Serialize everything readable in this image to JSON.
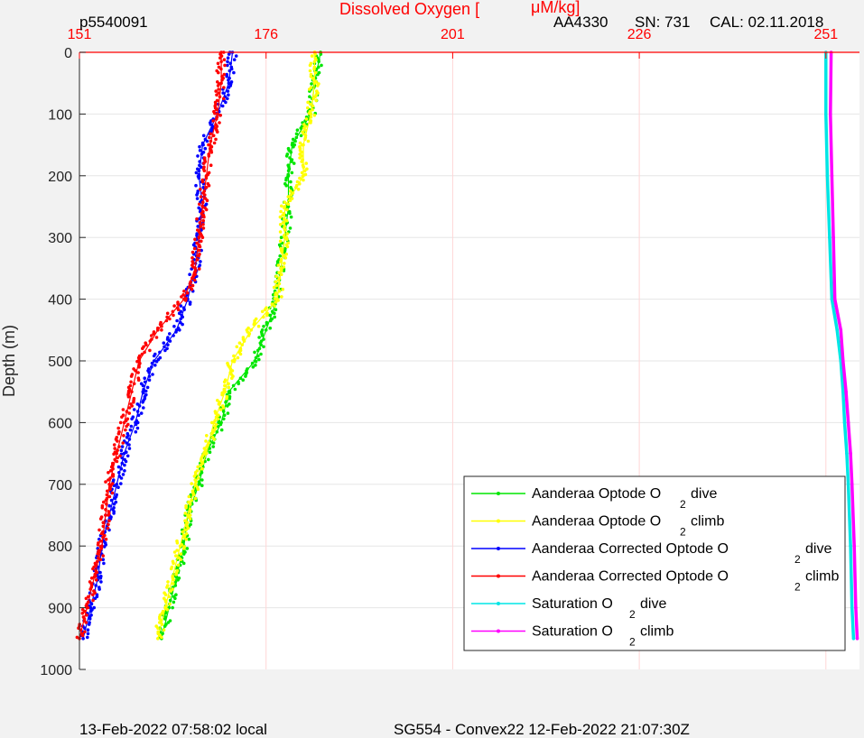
{
  "header": {
    "left_id": "p5540091",
    "sensor": "AA4330",
    "serial": "SN: 731",
    "calibration": "CAL: 02.11.2018"
  },
  "footer": {
    "local_time": "13-Feb-2022 07:58:02 local",
    "mission": "SG554 - Convex22 12-Feb-2022 21:07:30Z"
  },
  "colors": {
    "axis_red": "#ff0000",
    "green": "#00e600",
    "yellow": "#ffff00",
    "blue": "#0000ff",
    "red": "#ff0000",
    "cyan": "#00e5e5",
    "magenta": "#ff00ff"
  },
  "chart_data": {
    "type": "scatter",
    "title": "",
    "xlabel": "Dissolved Oxygen [",
    "xlabel_unit": "μM/kg]",
    "ylabel": "Depth (m)",
    "xlim": [
      151,
      255.5
    ],
    "ylim": [
      0,
      1000
    ],
    "y_reversed": true,
    "x_axis_position": "top",
    "x_ticks": [
      151,
      176,
      201,
      226,
      251
    ],
    "x_tick_labels": [
      "151",
      "176",
      "201",
      "226",
      "251"
    ],
    "y_ticks": [
      0,
      100,
      200,
      300,
      400,
      500,
      600,
      700,
      800,
      900,
      1000
    ],
    "y_tick_labels": [
      "0",
      "100",
      "200",
      "300",
      "400",
      "500",
      "600",
      "700",
      "800",
      "900",
      "1000"
    ],
    "grid": true,
    "legend_position": "bottom-right",
    "series": [
      {
        "name": "Aanderaa Optode O",
        "subscript": "2",
        "suffix": "dive",
        "color": "#00e600",
        "points": [
          [
            183.3,
            0
          ],
          [
            182.5,
            50
          ],
          [
            182,
            100
          ],
          [
            179.5,
            150
          ],
          [
            179,
            200
          ],
          [
            179,
            250
          ],
          [
            178.5,
            300
          ],
          [
            178,
            350
          ],
          [
            177.5,
            400
          ],
          [
            176,
            450
          ],
          [
            174.5,
            500
          ],
          [
            171,
            550
          ],
          [
            170,
            600
          ],
          [
            168,
            650
          ],
          [
            167,
            700
          ],
          [
            165.5,
            750
          ],
          [
            165,
            800
          ],
          [
            164,
            850
          ],
          [
            163,
            900
          ],
          [
            162,
            950
          ]
        ]
      },
      {
        "name": "Aanderaa Optode O",
        "subscript": "2",
        "suffix": "climb",
        "color": "#ffff00",
        "points": [
          [
            182.5,
            0
          ],
          [
            182.5,
            50
          ],
          [
            182,
            100
          ],
          [
            181,
            150
          ],
          [
            181,
            200
          ],
          [
            178.5,
            250
          ],
          [
            178.5,
            300
          ],
          [
            178,
            350
          ],
          [
            177.5,
            400
          ],
          [
            174,
            450
          ],
          [
            171.5,
            500
          ],
          [
            170.5,
            550
          ],
          [
            169,
            600
          ],
          [
            168,
            650
          ],
          [
            166.5,
            700
          ],
          [
            165.5,
            750
          ],
          [
            164.5,
            800
          ],
          [
            163.5,
            850
          ],
          [
            162.5,
            900
          ],
          [
            161.5,
            950
          ]
        ]
      },
      {
        "name": "Aanderaa Corrected Optode O",
        "subscript": "2",
        "suffix": "dive",
        "color": "#0000ff",
        "points": [
          [
            171.5,
            0
          ],
          [
            171,
            50
          ],
          [
            169.5,
            100
          ],
          [
            167.5,
            150
          ],
          [
            167,
            200
          ],
          [
            167.5,
            250
          ],
          [
            167,
            300
          ],
          [
            166.5,
            350
          ],
          [
            165.5,
            400
          ],
          [
            164,
            450
          ],
          [
            161,
            500
          ],
          [
            159.5,
            550
          ],
          [
            158.5,
            600
          ],
          [
            157,
            650
          ],
          [
            156,
            700
          ],
          [
            155,
            750
          ],
          [
            154,
            800
          ],
          [
            153.5,
            850
          ],
          [
            152.5,
            900
          ],
          [
            151.5,
            950
          ]
        ]
      },
      {
        "name": "Aanderaa Corrected Optode O",
        "subscript": "2",
        "suffix": "climb",
        "color": "#ff0000",
        "points": [
          [
            170,
            0
          ],
          [
            170,
            50
          ],
          [
            169.5,
            100
          ],
          [
            168.5,
            150
          ],
          [
            168,
            200
          ],
          [
            167.5,
            250
          ],
          [
            167,
            300
          ],
          [
            166.5,
            350
          ],
          [
            165,
            400
          ],
          [
            161.5,
            450
          ],
          [
            159,
            500
          ],
          [
            158,
            550
          ],
          [
            157,
            600
          ],
          [
            156,
            650
          ],
          [
            155,
            700
          ],
          [
            154.5,
            750
          ],
          [
            154,
            800
          ],
          [
            153,
            850
          ],
          [
            152,
            900
          ],
          [
            151,
            950
          ]
        ]
      },
      {
        "name": "Saturation O",
        "subscript": "2",
        "suffix": "dive",
        "color": "#00e5e5",
        "points": [
          [
            251,
            0
          ],
          [
            251,
            100
          ],
          [
            251.2,
            200
          ],
          [
            251.5,
            300
          ],
          [
            251.8,
            400
          ],
          [
            252.5,
            450
          ],
          [
            253,
            500
          ],
          [
            253.3,
            550
          ],
          [
            253.5,
            600
          ],
          [
            253.8,
            650
          ],
          [
            254,
            700
          ],
          [
            254.3,
            800
          ],
          [
            254.5,
            900
          ],
          [
            254.7,
            950
          ]
        ]
      },
      {
        "name": "Saturation O",
        "subscript": "2",
        "suffix": "climb",
        "color": "#ff00ff",
        "points": [
          [
            251.7,
            0
          ],
          [
            251.6,
            100
          ],
          [
            251.8,
            200
          ],
          [
            252,
            300
          ],
          [
            252.2,
            400
          ],
          [
            253,
            450
          ],
          [
            253.3,
            500
          ],
          [
            253.7,
            550
          ],
          [
            254,
            600
          ],
          [
            254.3,
            650
          ],
          [
            254.5,
            700
          ],
          [
            254.8,
            800
          ],
          [
            255,
            900
          ],
          [
            255.2,
            950
          ]
        ]
      }
    ]
  }
}
